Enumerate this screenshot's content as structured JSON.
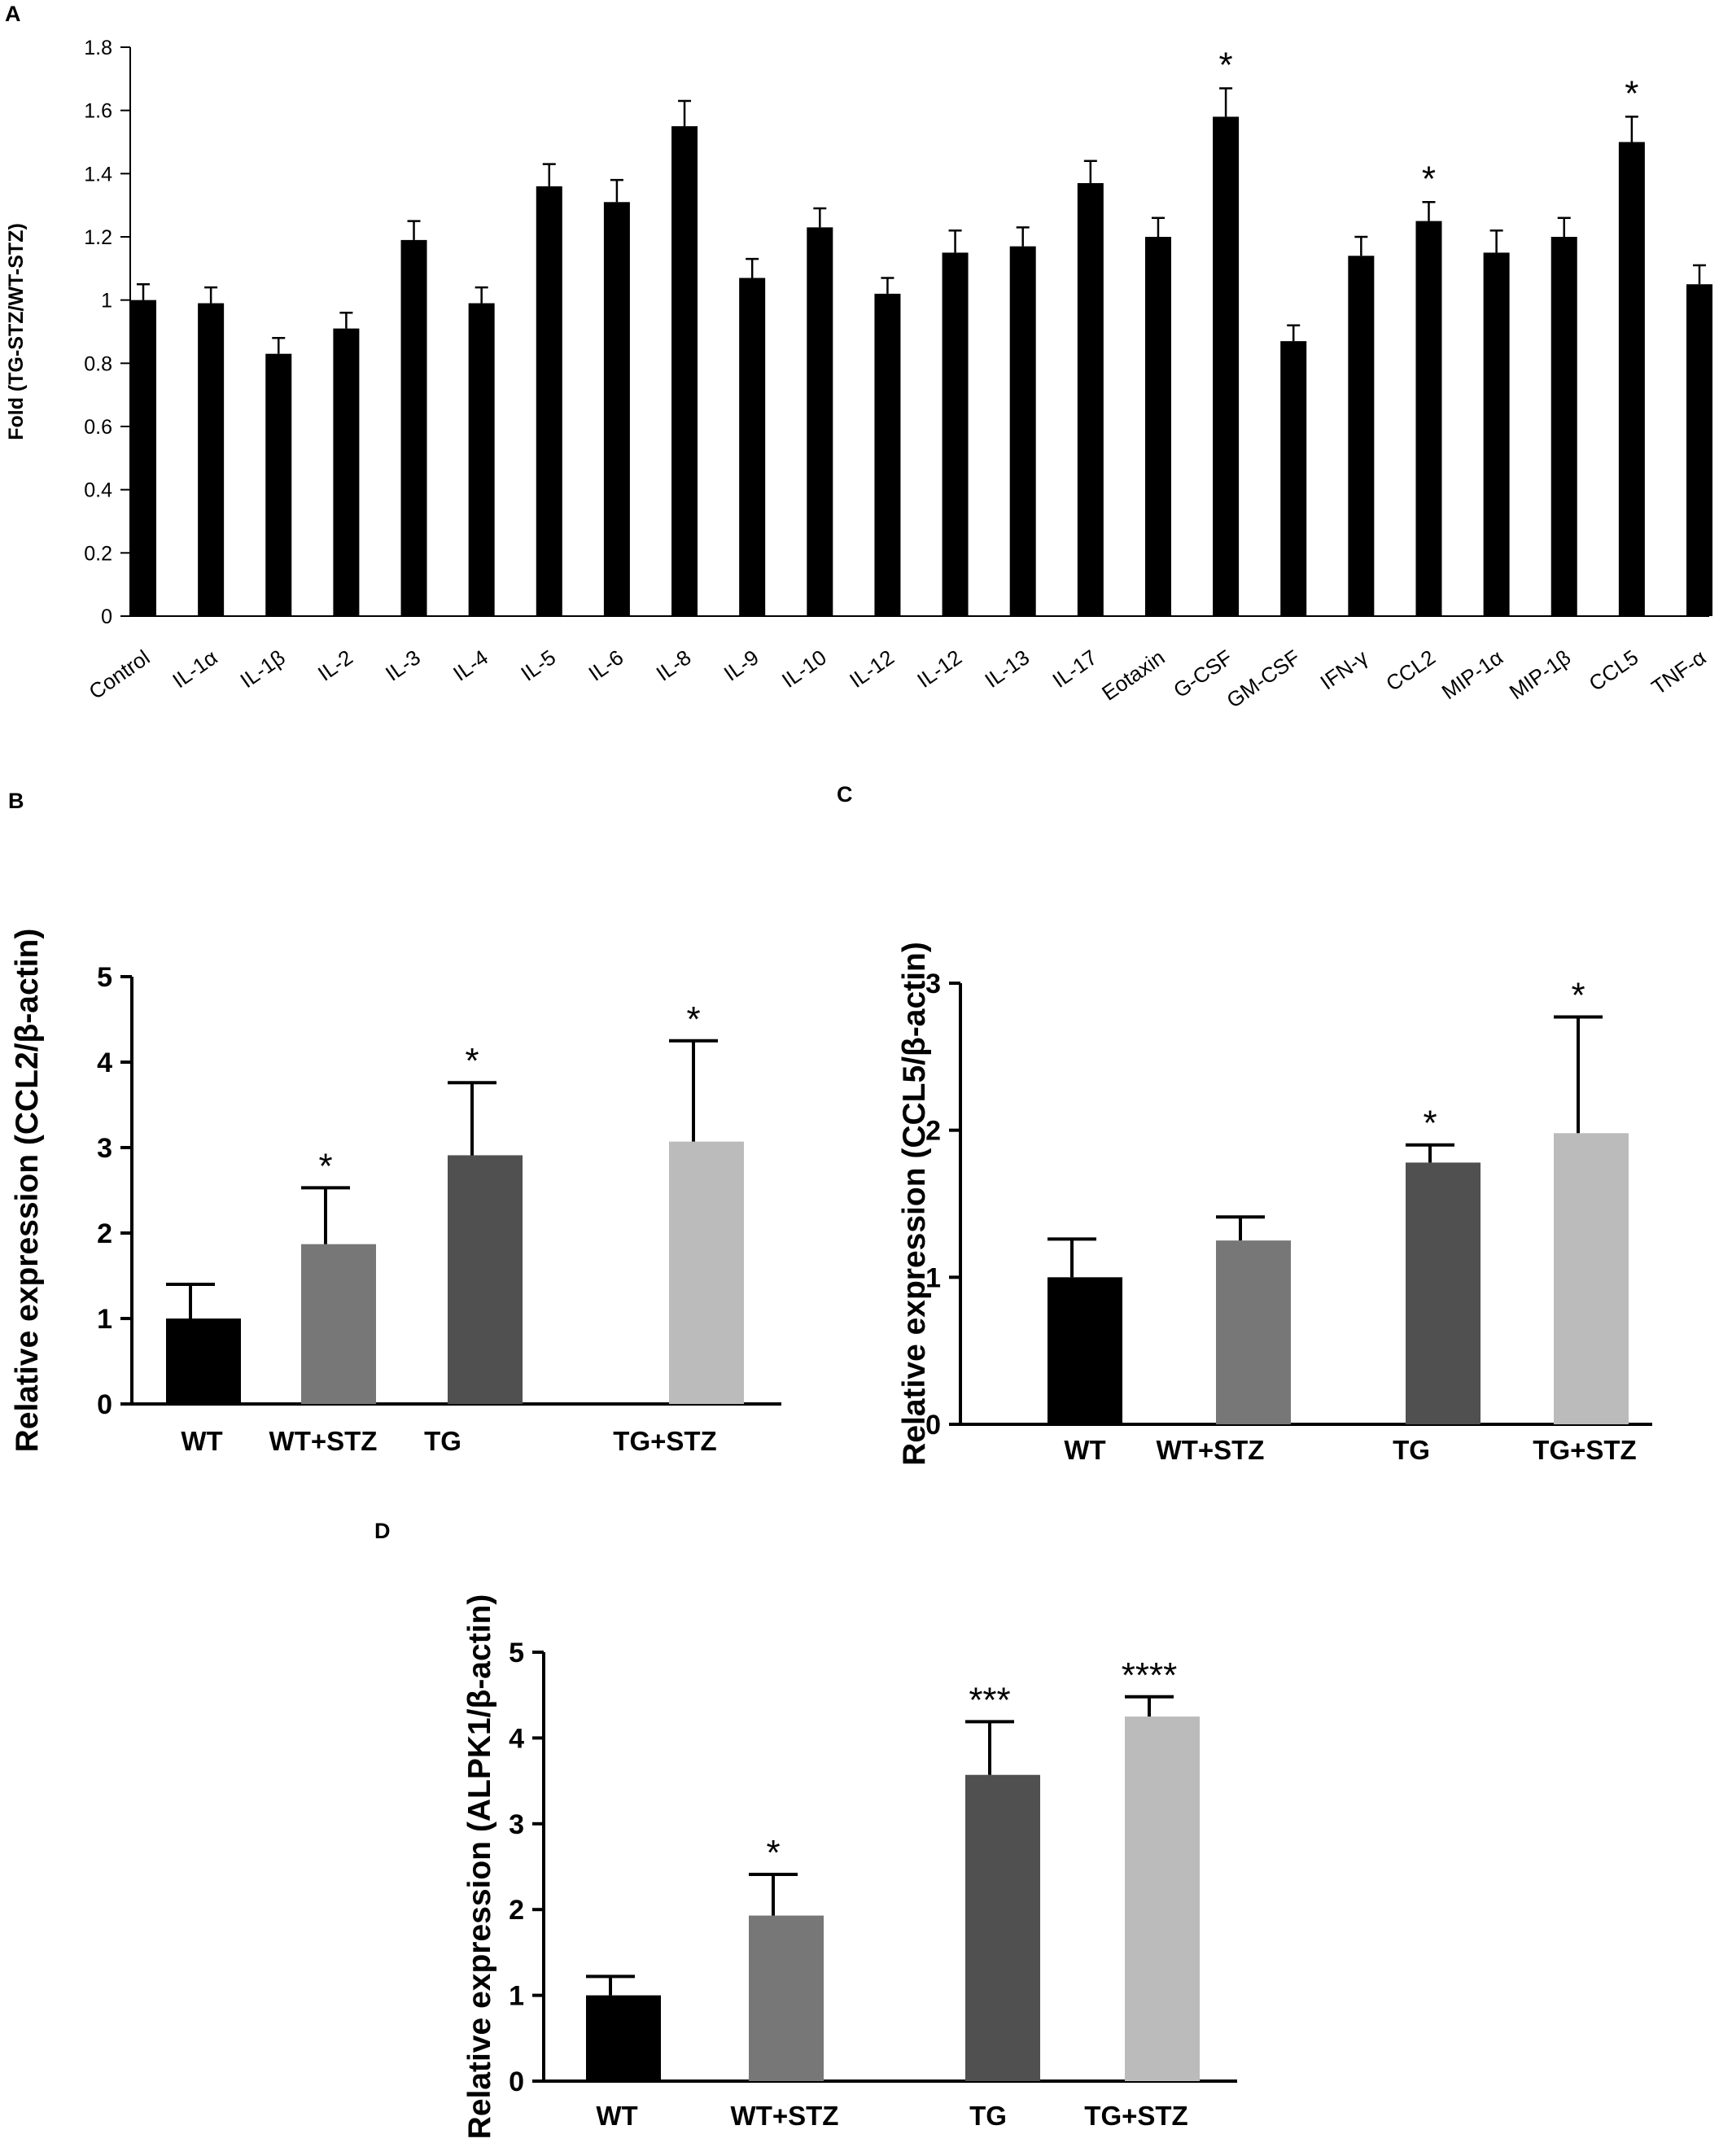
{
  "figure": {
    "panels": [
      {
        "letter": "A",
        "ylabel": "Fold (TG-STZ/WT-STZ)"
      },
      {
        "letter": "B",
        "ylabel": "Relative expression (CCL2/β-actin)"
      },
      {
        "letter": "C",
        "ylabel": "Relative expression (CCL5/β-actin)"
      },
      {
        "letter": "D",
        "ylabel": "Relative expression (ALPK1/β-actin)"
      }
    ]
  },
  "chart_data": [
    {
      "panel": "A",
      "type": "bar",
      "xlabel": "",
      "ylabel": "Fold (TG-STZ/WT-STZ)",
      "ylim": [
        0,
        1.8
      ],
      "yticks": [
        0,
        0.2,
        0.4,
        0.6,
        0.8,
        1,
        1.2,
        1.4,
        1.6,
        1.8
      ],
      "ytick_labels": [
        "0",
        "0.2",
        "0.4",
        "0.6",
        "0.8",
        "1",
        "1.2",
        "1.4",
        "1.6",
        "1.8"
      ],
      "grid": false,
      "bar_color": "#000000",
      "categories": [
        "Control",
        "IL-1α",
        "IL-1β",
        "IL-2",
        "IL-3",
        "IL-4",
        "IL-5",
        "IL-6",
        "IL-8",
        "IL-9",
        "IL-10",
        "IL-12",
        "IL-12",
        "IL-13",
        "IL-17",
        "Eotaxin",
        "G-CSF",
        "GM-CSF",
        "IFN-γ",
        "CCL2",
        "MIP-1α",
        "MIP-1β",
        "CCL5",
        "TNF-α"
      ],
      "values": [
        1.0,
        0.99,
        0.83,
        0.91,
        1.19,
        0.99,
        1.36,
        1.31,
        1.55,
        1.07,
        1.23,
        1.02,
        1.15,
        1.17,
        1.37,
        1.2,
        1.58,
        0.87,
        1.14,
        1.25,
        1.15,
        1.2,
        1.5,
        1.05
      ],
      "errors": [
        0.05,
        0.05,
        0.05,
        0.05,
        0.06,
        0.05,
        0.07,
        0.07,
        0.08,
        0.06,
        0.06,
        0.05,
        0.07,
        0.06,
        0.07,
        0.06,
        0.09,
        0.05,
        0.06,
        0.06,
        0.07,
        0.06,
        0.08,
        0.06
      ],
      "significance": [
        "",
        "",
        "",
        "",
        "",
        "",
        "",
        "",
        "",
        "",
        "",
        "",
        "",
        "",
        "",
        "",
        "*",
        "",
        "",
        "*",
        "",
        "",
        "*",
        ""
      ]
    },
    {
      "panel": "B",
      "type": "bar",
      "xlabel": "",
      "ylabel": "Relative expression (CCL2/β-actin)",
      "ylim": [
        0,
        5
      ],
      "yticks": [
        0,
        1,
        2,
        3,
        4,
        5
      ],
      "ytick_labels": [
        "0",
        "1",
        "2",
        "3",
        "4",
        "5"
      ],
      "grid": false,
      "categories": [
        "WT",
        "WT+STZ",
        "TG",
        "TG+STZ"
      ],
      "values": [
        1.0,
        1.87,
        2.91,
        3.07
      ],
      "errors": [
        0.4,
        0.66,
        0.85,
        1.18
      ],
      "colors": [
        "#000000",
        "#777777",
        "#505050",
        "#bbbbbb"
      ],
      "significance": [
        "",
        "*",
        "*",
        "*"
      ]
    },
    {
      "panel": "C",
      "type": "bar",
      "xlabel": "",
      "ylabel": "Relative expression (CCL5/β-actin)",
      "ylim": [
        0,
        3
      ],
      "yticks": [
        0,
        1,
        2,
        3
      ],
      "ytick_labels": [
        "0",
        "1",
        "2",
        "3"
      ],
      "grid": false,
      "categories": [
        "WT",
        "WT+STZ",
        "TG",
        "TG+STZ"
      ],
      "values": [
        1.0,
        1.25,
        1.78,
        1.98
      ],
      "errors": [
        0.26,
        0.16,
        0.12,
        0.79
      ],
      "colors": [
        "#000000",
        "#777777",
        "#505050",
        "#bbbbbb"
      ],
      "significance": [
        "",
        "",
        "*",
        "*"
      ]
    },
    {
      "panel": "D",
      "type": "bar",
      "xlabel": "",
      "ylabel": "Relative expression (ALPK1/β-actin)",
      "ylim": [
        0,
        5
      ],
      "yticks": [
        0,
        1,
        2,
        3,
        4,
        5
      ],
      "ytick_labels": [
        "0",
        "1",
        "2",
        "3",
        "4",
        "5"
      ],
      "grid": false,
      "categories": [
        "WT",
        "WT+STZ",
        "TG",
        "TG+STZ"
      ],
      "values": [
        1.0,
        1.93,
        3.57,
        4.25
      ],
      "errors": [
        0.22,
        0.48,
        0.62,
        0.23
      ],
      "colors": [
        "#000000",
        "#777777",
        "#505050",
        "#bbbbbb"
      ],
      "significance": [
        "",
        "*",
        "***",
        "****"
      ]
    }
  ]
}
